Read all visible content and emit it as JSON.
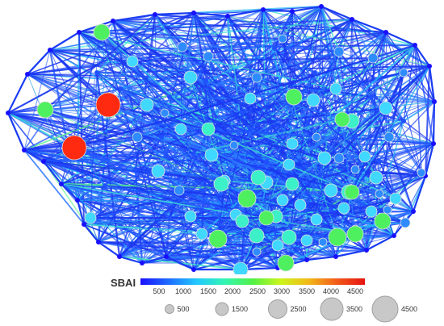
{
  "colorbar": {
    "title": "SBAI",
    "ticks": [
      "500",
      "1000",
      "1500",
      "2000",
      "2500",
      "3000",
      "3500",
      "4000",
      "4500"
    ],
    "colors": [
      "#1a10ff",
      "#1e6cff",
      "#22c8ff",
      "#33f5b3",
      "#52f046",
      "#cdf51c",
      "#f2b81a",
      "#f25a1a",
      "#e61410"
    ]
  },
  "size_legend": {
    "labels": [
      "500",
      "1500",
      "2500",
      "3500",
      "4500"
    ]
  },
  "network": {
    "node_outline": "#dddddd",
    "edge_colors": [
      "#1b38f0",
      "#2258ff",
      "#2e7cff",
      "#26b6f5",
      "#3ee0d2",
      "#5af08a"
    ]
  }
}
